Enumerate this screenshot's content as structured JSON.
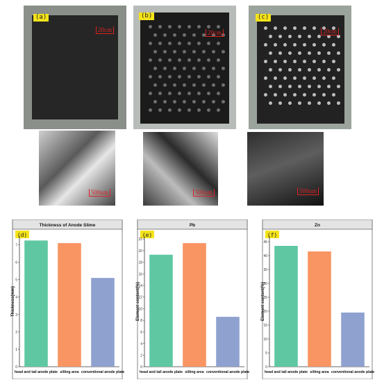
{
  "photos": {
    "a": {
      "tag": "(a)",
      "scale": "20cm",
      "micro_scale": "500um"
    },
    "b": {
      "tag": "(b)",
      "scale": "20cm",
      "micro_scale": "500um"
    },
    "c": {
      "tag": "(c)",
      "scale": "20cm",
      "micro_scale": "500um"
    }
  },
  "chart_data": [
    {
      "type": "bar",
      "tag": "(d)",
      "title": "Thickness of Anode Slime",
      "ylabel": "Thickness(mm)",
      "xlabel": "",
      "categories": [
        "head and tail anode plate",
        "silting area",
        "conventional anode plate"
      ],
      "values": [
        7.25,
        7.1,
        5.1
      ],
      "colors": [
        "#5fc8a2",
        "#f89563",
        "#8fa1cf"
      ],
      "ylim": [
        0,
        7.5
      ],
      "yticks": [
        0,
        1,
        2,
        3,
        4,
        5,
        6,
        7
      ],
      "grid": false
    },
    {
      "type": "bar",
      "tag": "(e)",
      "title": "Pb",
      "ylabel": "Element content(%)",
      "xlabel": "",
      "categories": [
        "head and tail anode plate",
        "silting area",
        "conventional anode plate"
      ],
      "values": [
        19.3,
        21.3,
        8.6
      ],
      "colors": [
        "#5fc8a2",
        "#f89563",
        "#8fa1cf"
      ],
      "ylim": [
        0,
        22.5
      ],
      "yticks": [
        0,
        2,
        4,
        6,
        8,
        10,
        12,
        14,
        16,
        18,
        20,
        22
      ],
      "grid": false
    },
    {
      "type": "bar",
      "tag": "(f)",
      "title": "Zn",
      "ylabel": "Element content(%)",
      "xlabel": "",
      "categories": [
        "head and tail anode plate",
        "silting area",
        "conventional anode plate"
      ],
      "values": [
        43.5,
        41.5,
        19.5
      ],
      "colors": [
        "#5fc8a2",
        "#f89563",
        "#8fa1cf"
      ],
      "ylim": [
        0,
        47
      ],
      "yticks": [
        0,
        5,
        10,
        15,
        20,
        25,
        30,
        35,
        40,
        45
      ],
      "grid": false
    }
  ]
}
